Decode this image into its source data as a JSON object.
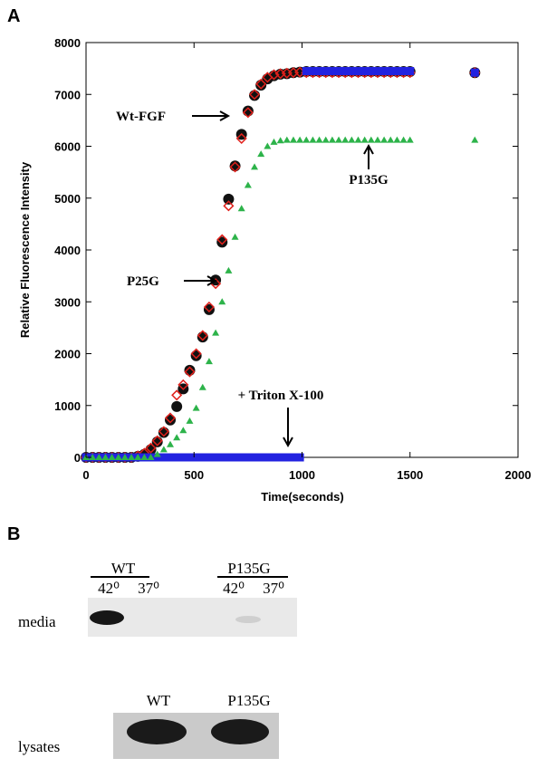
{
  "chart_data": {
    "type": "scatter",
    "panel_label": "A",
    "xlabel": "Time(seconds)",
    "ylabel": "Relative Fluorescence Intensity",
    "xlim": [
      0,
      2000
    ],
    "xticks": [
      0,
      500,
      1000,
      1500,
      2000
    ],
    "ylim": [
      0,
      8000
    ],
    "yticks": [
      0,
      1000,
      2000,
      3000,
      4000,
      5000,
      6000,
      7000,
      8000
    ],
    "x": [
      0,
      30,
      60,
      90,
      120,
      150,
      180,
      210,
      240,
      270,
      300,
      330,
      360,
      390,
      420,
      450,
      480,
      510,
      540,
      570,
      600,
      630,
      660,
      690,
      720,
      750,
      780,
      810,
      840,
      870,
      900,
      930,
      960,
      990,
      1020,
      1050,
      1080,
      1110,
      1140,
      1170,
      1200,
      1230,
      1260,
      1290,
      1320,
      1350,
      1380,
      1410,
      1440,
      1470,
      1500,
      1800
    ],
    "series": [
      {
        "color": "#111111",
        "marker": "circle",
        "values": [
          0,
          0,
          0,
          0,
          0,
          0,
          0,
          0,
          20,
          60,
          150,
          300,
          480,
          720,
          980,
          1320,
          1680,
          1960,
          2320,
          2850,
          3420,
          4150,
          4980,
          5620,
          6230,
          6680,
          6980,
          7180,
          7300,
          7360,
          7390,
          7400,
          7420,
          7430,
          7440,
          7440,
          7440,
          7440,
          7440,
          7440,
          7440,
          7440,
          7440,
          7440,
          7440,
          7440,
          7440,
          7440,
          7440,
          7440,
          7440,
          7420
        ]
      },
      {
        "color": "#e0201b",
        "marker": "diamond",
        "values": [
          0,
          0,
          0,
          0,
          0,
          0,
          0,
          0,
          30,
          80,
          180,
          320,
          500,
          760,
          1200,
          1400,
          1650,
          2000,
          2350,
          2900,
          3350,
          4200,
          4850,
          5600,
          6150,
          6650,
          7000,
          7200,
          7330,
          7380,
          7400,
          7410,
          7420,
          7430,
          7420,
          7420,
          7420,
          7420,
          7420,
          7420,
          7420,
          7420,
          7420,
          7420,
          7420,
          7420,
          7420,
          7420,
          7420,
          7420,
          7420,
          7420
        ]
      },
      {
        "color": "#2222e0",
        "marker": "square",
        "values": [
          0,
          0,
          0,
          0,
          0,
          0,
          0,
          0,
          0,
          0,
          0,
          0,
          0,
          0,
          0,
          0,
          0,
          0,
          0,
          0,
          0,
          0,
          0,
          0,
          0,
          0,
          0,
          0,
          0,
          0,
          0,
          0,
          0,
          0,
          7450,
          7450,
          7450,
          7450,
          7450,
          7450,
          7450,
          7450,
          7450,
          7450,
          7450,
          7450,
          7450,
          7450,
          7450,
          7450,
          7450,
          7420
        ]
      },
      {
        "color": "#2db34a",
        "marker": "triangle",
        "values": [
          0,
          0,
          0,
          0,
          0,
          0,
          0,
          0,
          0,
          0,
          0,
          60,
          150,
          250,
          380,
          520,
          700,
          950,
          1350,
          1850,
          2400,
          3000,
          3600,
          4250,
          4800,
          5250,
          5600,
          5850,
          6000,
          6080,
          6110,
          6120,
          6120,
          6120,
          6120,
          6120,
          6120,
          6120,
          6120,
          6120,
          6120,
          6120,
          6120,
          6120,
          6120,
          6120,
          6120,
          6120,
          6120,
          6120,
          6120,
          6120
        ]
      }
    ],
    "annotations": [
      "Wt-FGF",
      "P25G",
      "P135G",
      "+ Triton X-100"
    ]
  },
  "blot": {
    "panel_label": "B",
    "top_groups": [
      "WT",
      "P135G"
    ],
    "temps": [
      "42⁰",
      "37⁰",
      "42⁰",
      "37⁰"
    ],
    "media_label": "media",
    "lysate_groups": [
      "WT",
      "P135G"
    ],
    "lysate_label": "lysates"
  }
}
